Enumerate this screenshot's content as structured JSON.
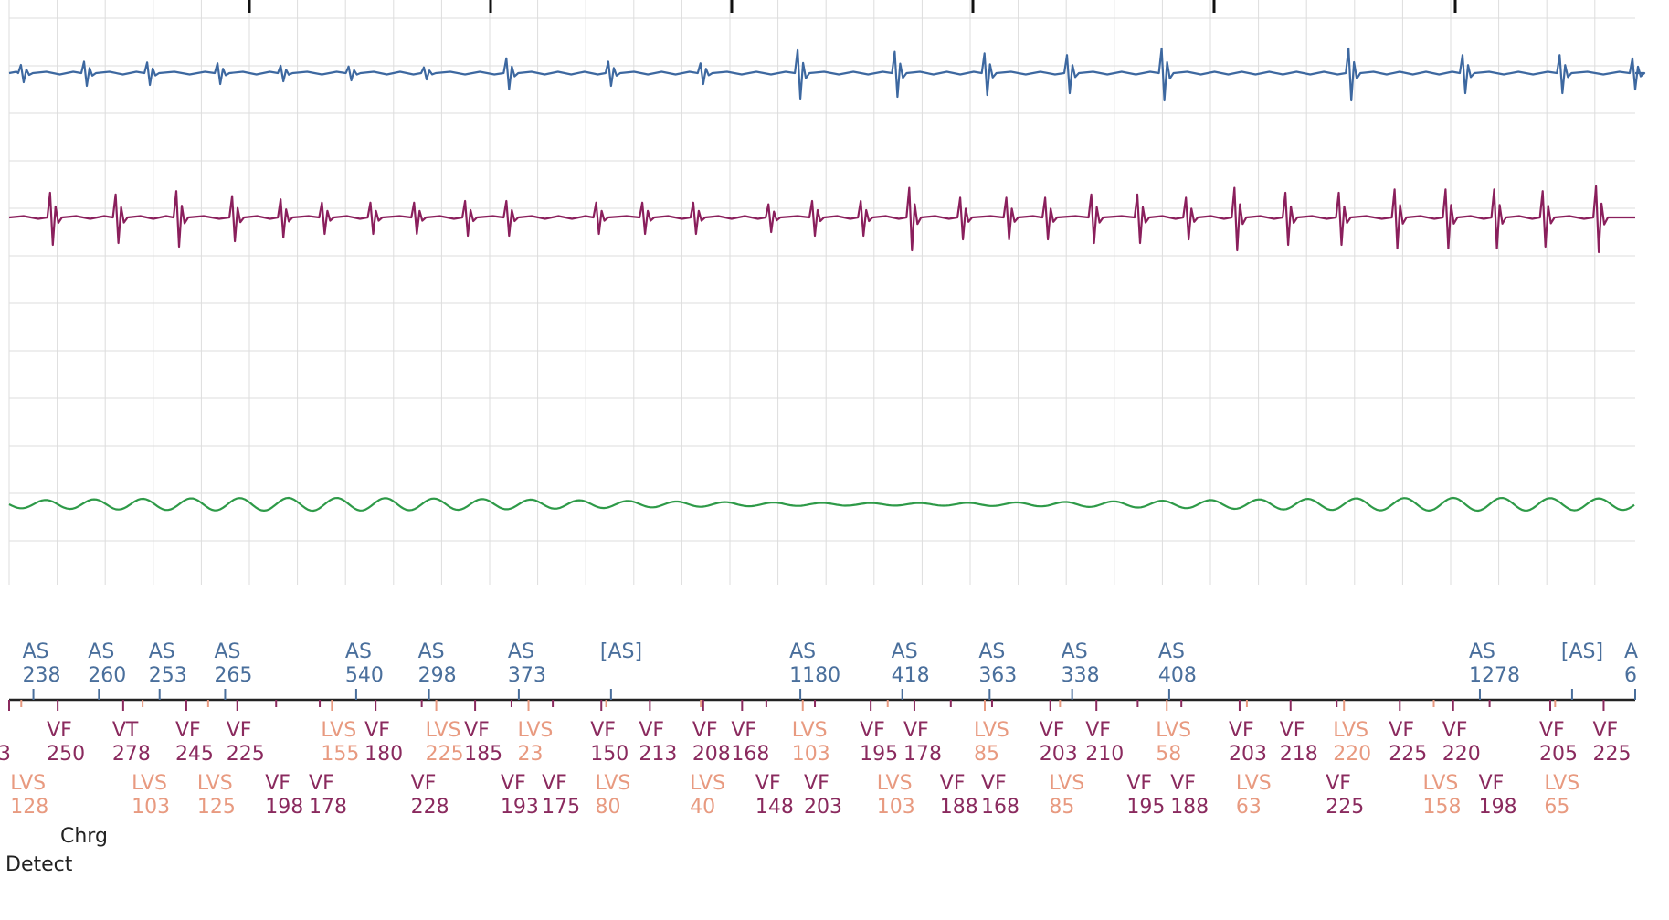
{
  "colors": {
    "atrial": "#3d68a0",
    "ventricular": "#8a1f5c",
    "shock": "#2e9a48",
    "as_marker": "#4a6f9c",
    "vf_marker": "#8a2a5e",
    "lvs_marker": "#e89a80",
    "grid": "#dddddd"
  },
  "chart_data": {
    "type": "line",
    "title": "",
    "xlabel": "",
    "ylabel": "",
    "time_range_s": [
      0,
      6.7
    ],
    "grid": true,
    "channels": [
      {
        "key": "atrial",
        "color": "#3d68a0",
        "beats": [
          {
            "t": 0.06,
            "amp": 10
          },
          {
            "t": 0.32,
            "amp": 14
          },
          {
            "t": 0.58,
            "amp": 13
          },
          {
            "t": 0.87,
            "amp": 12
          },
          {
            "t": 1.13,
            "amp": 9
          },
          {
            "t": 1.41,
            "amp": 8
          },
          {
            "t": 1.72,
            "amp": 7
          },
          {
            "t": 2.06,
            "amp": 18
          },
          {
            "t": 2.48,
            "amp": 14
          },
          {
            "t": 2.86,
            "amp": 12
          },
          {
            "t": 3.26,
            "amp": 28
          },
          {
            "t": 3.66,
            "amp": 26
          },
          {
            "t": 4.03,
            "amp": 24
          },
          {
            "t": 4.37,
            "amp": 22
          },
          {
            "t": 4.76,
            "amp": 30
          },
          {
            "t": 5.53,
            "amp": 30
          },
          {
            "t": 6.0,
            "amp": 22
          },
          {
            "t": 6.4,
            "amp": 22
          },
          {
            "t": 6.7,
            "amp": 18
          }
        ]
      },
      {
        "key": "ventricular",
        "color": "#8a1f5c",
        "beats": [
          {
            "t": 0.18,
            "amp": 30
          },
          {
            "t": 0.45,
            "amp": 28
          },
          {
            "t": 0.7,
            "amp": 32
          },
          {
            "t": 0.93,
            "amp": 26
          },
          {
            "t": 1.13,
            "amp": 22
          },
          {
            "t": 1.3,
            "amp": 18
          },
          {
            "t": 1.5,
            "amp": 18
          },
          {
            "t": 1.68,
            "amp": 18
          },
          {
            "t": 1.89,
            "amp": 20
          },
          {
            "t": 2.06,
            "amp": 20
          },
          {
            "t": 2.43,
            "amp": 18
          },
          {
            "t": 2.62,
            "amp": 18
          },
          {
            "t": 2.83,
            "amp": 18
          },
          {
            "t": 3.14,
            "amp": 16
          },
          {
            "t": 3.32,
            "amp": 20
          },
          {
            "t": 3.52,
            "amp": 20
          },
          {
            "t": 3.72,
            "amp": 36
          },
          {
            "t": 3.93,
            "amp": 24
          },
          {
            "t": 4.12,
            "amp": 24
          },
          {
            "t": 4.28,
            "amp": 24
          },
          {
            "t": 4.47,
            "amp": 28
          },
          {
            "t": 4.66,
            "amp": 28
          },
          {
            "t": 4.86,
            "amp": 24
          },
          {
            "t": 5.06,
            "amp": 36
          },
          {
            "t": 5.27,
            "amp": 30
          },
          {
            "t": 5.49,
            "amp": 30
          },
          {
            "t": 5.72,
            "amp": 34
          },
          {
            "t": 5.93,
            "amp": 34
          },
          {
            "t": 6.13,
            "amp": 34
          },
          {
            "t": 6.33,
            "amp": 32
          },
          {
            "t": 6.55,
            "amp": 38
          }
        ]
      },
      {
        "key": "shock",
        "color": "#2e9a48",
        "style": "sinusoidal",
        "period_s": 0.2,
        "amp": 7
      }
    ]
  },
  "markers": {
    "atrial_row": [
      {
        "t": 0.1,
        "label": "AS",
        "value": "238"
      },
      {
        "t": 0.37,
        "label": "AS",
        "value": "260"
      },
      {
        "t": 0.62,
        "label": "AS",
        "value": "253"
      },
      {
        "t": 0.89,
        "label": "AS",
        "value": "265"
      },
      {
        "t": 1.43,
        "label": "AS",
        "value": "540"
      },
      {
        "t": 1.73,
        "label": "AS",
        "value": "298"
      },
      {
        "t": 2.1,
        "label": "AS",
        "value": "373"
      },
      {
        "t": 2.48,
        "label": "[AS]",
        "value": ""
      },
      {
        "t": 3.26,
        "label": "AS",
        "value": "1180"
      },
      {
        "t": 3.68,
        "label": "AS",
        "value": "418"
      },
      {
        "t": 4.04,
        "label": "AS",
        "value": "363"
      },
      {
        "t": 4.38,
        "label": "AS",
        "value": "338"
      },
      {
        "t": 4.78,
        "label": "AS",
        "value": "408"
      },
      {
        "t": 6.06,
        "label": "AS",
        "value": "1278"
      },
      {
        "t": 6.44,
        "label": "[AS]",
        "value": ""
      },
      {
        "t": 6.7,
        "label": "A",
        "value": "6"
      }
    ],
    "vent_upper": [
      {
        "t": 0.0,
        "label": "",
        "value": "3",
        "kind": "vf"
      },
      {
        "t": 0.2,
        "label": "VF",
        "value": "250",
        "kind": "vf"
      },
      {
        "t": 0.47,
        "label": "VT",
        "value": "278",
        "kind": "vf"
      },
      {
        "t": 0.73,
        "label": "VF",
        "value": "245",
        "kind": "vf"
      },
      {
        "t": 0.94,
        "label": "VF",
        "value": "225",
        "kind": "vf"
      },
      {
        "t": 1.33,
        "label": "LVS",
        "value": "155",
        "kind": "lvs"
      },
      {
        "t": 1.51,
        "label": "VF",
        "value": "180",
        "kind": "vf"
      },
      {
        "t": 1.76,
        "label": "LVS",
        "value": "225",
        "kind": "lvs"
      },
      {
        "t": 1.92,
        "label": "VF",
        "value": "185",
        "kind": "vf"
      },
      {
        "t": 2.14,
        "label": "LVS",
        "value": "23",
        "kind": "lvs"
      },
      {
        "t": 2.44,
        "label": "VF",
        "value": "150",
        "kind": "vf"
      },
      {
        "t": 2.64,
        "label": "VF",
        "value": "213",
        "kind": "vf"
      },
      {
        "t": 2.86,
        "label": "VF",
        "value": "208",
        "kind": "vf"
      },
      {
        "t": 3.02,
        "label": "VF",
        "value": "168",
        "kind": "vf"
      },
      {
        "t": 3.27,
        "label": "LVS",
        "value": "103",
        "kind": "lvs"
      },
      {
        "t": 3.55,
        "label": "VF",
        "value": "195",
        "kind": "vf"
      },
      {
        "t": 3.73,
        "label": "VF",
        "value": "178",
        "kind": "vf"
      },
      {
        "t": 4.02,
        "label": "LVS",
        "value": "85",
        "kind": "lvs"
      },
      {
        "t": 4.29,
        "label": "VF",
        "value": "203",
        "kind": "vf"
      },
      {
        "t": 4.48,
        "label": "VF",
        "value": "210",
        "kind": "vf"
      },
      {
        "t": 4.77,
        "label": "LVS",
        "value": "58",
        "kind": "lvs"
      },
      {
        "t": 5.07,
        "label": "VF",
        "value": "203",
        "kind": "vf"
      },
      {
        "t": 5.28,
        "label": "VF",
        "value": "218",
        "kind": "vf"
      },
      {
        "t": 5.5,
        "label": "LVS",
        "value": "220",
        "kind": "lvs"
      },
      {
        "t": 5.73,
        "label": "VF",
        "value": "225",
        "kind": "vf"
      },
      {
        "t": 5.95,
        "label": "VF",
        "value": "220",
        "kind": "vf"
      },
      {
        "t": 6.35,
        "label": "VF",
        "value": "205",
        "kind": "vf"
      },
      {
        "t": 6.57,
        "label": "VF",
        "value": "225",
        "kind": "vf"
      }
    ],
    "vent_lower": [
      {
        "t": 0.05,
        "label": "LVS",
        "value": "128",
        "kind": "lvs"
      },
      {
        "t": 0.55,
        "label": "LVS",
        "value": "103",
        "kind": "lvs"
      },
      {
        "t": 0.82,
        "label": "LVS",
        "value": "125",
        "kind": "lvs"
      },
      {
        "t": 1.1,
        "label": "VF",
        "value": "198",
        "kind": "vf"
      },
      {
        "t": 1.28,
        "label": "VF",
        "value": "178",
        "kind": "vf"
      },
      {
        "t": 1.7,
        "label": "VF",
        "value": "228",
        "kind": "vf"
      },
      {
        "t": 2.07,
        "label": "VF",
        "value": "193",
        "kind": "vf"
      },
      {
        "t": 2.24,
        "label": "VF",
        "value": "175",
        "kind": "vf"
      },
      {
        "t": 2.46,
        "label": "LVS",
        "value": "80",
        "kind": "lvs"
      },
      {
        "t": 2.85,
        "label": "LVS",
        "value": "40",
        "kind": "lvs"
      },
      {
        "t": 3.12,
        "label": "VF",
        "value": "148",
        "kind": "vf"
      },
      {
        "t": 3.32,
        "label": "VF",
        "value": "203",
        "kind": "vf"
      },
      {
        "t": 3.62,
        "label": "LVS",
        "value": "103",
        "kind": "lvs"
      },
      {
        "t": 3.88,
        "label": "VF",
        "value": "188",
        "kind": "vf"
      },
      {
        "t": 4.05,
        "label": "VF",
        "value": "168",
        "kind": "vf"
      },
      {
        "t": 4.33,
        "label": "LVS",
        "value": "85",
        "kind": "lvs"
      },
      {
        "t": 4.65,
        "label": "VF",
        "value": "195",
        "kind": "vf"
      },
      {
        "t": 4.83,
        "label": "VF",
        "value": "188",
        "kind": "vf"
      },
      {
        "t": 5.1,
        "label": "LVS",
        "value": "63",
        "kind": "lvs"
      },
      {
        "t": 5.47,
        "label": "VF",
        "value": "225",
        "kind": "vf"
      },
      {
        "t": 5.87,
        "label": "LVS",
        "value": "158",
        "kind": "lvs"
      },
      {
        "t": 6.1,
        "label": "VF",
        "value": "198",
        "kind": "vf"
      },
      {
        "t": 6.37,
        "label": "LVS",
        "value": "65",
        "kind": "lvs"
      }
    ]
  },
  "annotations": {
    "charge": "Chrg",
    "detect": "Detect"
  }
}
